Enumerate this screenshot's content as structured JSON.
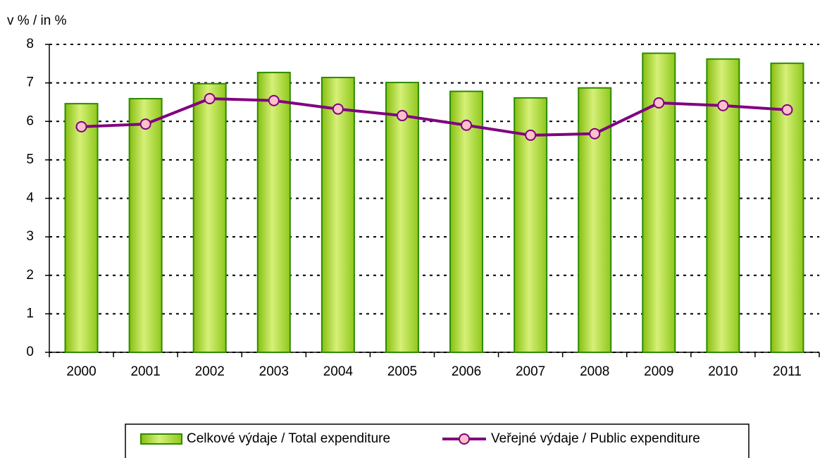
{
  "chart_data": {
    "type": "bar_line",
    "y_label": "v %  /  in %",
    "categories": [
      "2000",
      "2001",
      "2002",
      "2003",
      "2004",
      "2005",
      "2006",
      "2007",
      "2008",
      "2009",
      "2010",
      "2011"
    ],
    "series": [
      {
        "name": "Celkové výdaje / Total expenditure",
        "type": "bar",
        "color": "#9acd32",
        "values": [
          6.46,
          6.59,
          6.98,
          7.27,
          7.14,
          7.01,
          6.78,
          6.61,
          6.87,
          7.77,
          7.62,
          7.51
        ]
      },
      {
        "name": "Veřejné výdaje / Public expenditure",
        "type": "line",
        "color": "#800080",
        "values": [
          5.86,
          5.93,
          6.59,
          6.54,
          6.32,
          6.15,
          5.9,
          5.64,
          5.68,
          6.48,
          6.41,
          6.3
        ]
      }
    ],
    "ylim": [
      0,
      8
    ],
    "yticks": [
      0,
      1,
      2,
      3,
      4,
      5,
      6,
      7,
      8
    ],
    "grid": true,
    "legend": "bottom"
  }
}
